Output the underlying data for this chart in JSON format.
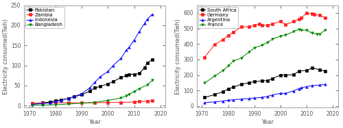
{
  "left": {
    "ylabel": "Electricity consumed(Twh)",
    "xlabel": "Year",
    "ylim": [
      -5,
      250
    ],
    "xlim": [
      1968,
      2022
    ],
    "yticks": [
      0,
      50,
      100,
      150,
      200,
      250
    ],
    "xticks": [
      1970,
      1980,
      1990,
      2000,
      2010,
      2020
    ],
    "series": {
      "Pakistan": {
        "color": "#000000",
        "marker": "s",
        "x": [
          1971,
          1975,
          1978,
          1980,
          1982,
          1985,
          1987,
          1990,
          1993,
          1995,
          1997,
          2000,
          2002,
          2005,
          2007,
          2008,
          2010,
          2012,
          2014,
          2015,
          2017
        ],
        "y": [
          5,
          7,
          9,
          12,
          14,
          18,
          22,
          27,
          36,
          44,
          48,
          54,
          60,
          70,
          75,
          78,
          78,
          80,
          95,
          106,
          115
        ]
      },
      "Zambia": {
        "color": "#ff2020",
        "marker": "s",
        "x": [
          1971,
          1975,
          1980,
          1985,
          1990,
          1995,
          2000,
          2005,
          2010,
          2012,
          2015,
          2017
        ],
        "y": [
          5,
          6,
          7,
          7,
          7,
          7,
          8,
          8,
          9,
          10,
          11,
          12
        ]
      },
      "Indonesia": {
        "color": "#1010ff",
        "marker": "^",
        "x": [
          1971,
          1975,
          1978,
          1980,
          1982,
          1985,
          1987,
          1990,
          1993,
          1995,
          1997,
          2000,
          2002,
          2005,
          2007,
          2008,
          2010,
          2012,
          2014,
          2015,
          2017
        ],
        "y": [
          3,
          5,
          7,
          10,
          13,
          18,
          22,
          30,
          44,
          58,
          72,
          85,
          100,
          118,
          138,
          145,
          163,
          185,
          205,
          215,
          228
        ]
      },
      "Bangladesh": {
        "color": "#008800",
        "marker": "v",
        "x": [
          1971,
          1975,
          1980,
          1985,
          1990,
          1995,
          2000,
          2005,
          2007,
          2008,
          2010,
          2012,
          2015,
          2017
        ],
        "y": [
          1,
          1,
          2,
          4,
          6,
          8,
          13,
          19,
          24,
          28,
          35,
          42,
          52,
          63
        ]
      }
    }
  },
  "right": {
    "ylabel": "Electricity consumed(Twh)",
    "xlabel": "Year",
    "ylim": [
      -10,
      650
    ],
    "xlim": [
      1968,
      2022
    ],
    "yticks": [
      0,
      100,
      200,
      300,
      400,
      500,
      600
    ],
    "xticks": [
      1970,
      1980,
      1990,
      2000,
      2010,
      2020
    ],
    "series": {
      "South Africa": {
        "color": "#000000",
        "marker": "s",
        "x": [
          1971,
          1975,
          1978,
          1980,
          1982,
          1985,
          1988,
          1990,
          1993,
          1995,
          1997,
          2000,
          2002,
          2005,
          2007,
          2010,
          2012,
          2015,
          2017
        ],
        "y": [
          55,
          75,
          92,
          110,
          122,
          140,
          150,
          158,
          162,
          165,
          177,
          200,
          200,
          202,
          225,
          230,
          245,
          235,
          225
        ]
      },
      "Germany": {
        "color": "#ff2020",
        "marker": "s",
        "x": [
          1971,
          1975,
          1978,
          1980,
          1982,
          1985,
          1988,
          1990,
          1992,
          1993,
          1995,
          1997,
          2000,
          2002,
          2005,
          2007,
          2008,
          2010,
          2012,
          2013,
          2015,
          2017
        ],
        "y": [
          315,
          398,
          428,
          455,
          475,
          510,
          512,
          520,
          530,
          522,
          520,
          530,
          545,
          525,
          545,
          560,
          570,
          598,
          595,
          590,
          585,
          570
        ]
      },
      "Argentina": {
        "color": "#1010ff",
        "marker": "^",
        "x": [
          1971,
          1975,
          1978,
          1980,
          1982,
          1985,
          1988,
          1990,
          1993,
          1995,
          1997,
          2000,
          2002,
          2005,
          2007,
          2008,
          2010,
          2012,
          2015,
          2017
        ],
        "y": [
          22,
          27,
          32,
          38,
          40,
          45,
          48,
          52,
          56,
          62,
          72,
          82,
          82,
          98,
          112,
          118,
          125,
          132,
          135,
          140
        ]
      },
      "France": {
        "color": "#008800",
        "marker": "v",
        "x": [
          1971,
          1975,
          1978,
          1980,
          1982,
          1985,
          1988,
          1990,
          1993,
          1995,
          1997,
          2000,
          2002,
          2005,
          2007,
          2008,
          2010,
          2012,
          2014,
          2015,
          2017
        ],
        "y": [
          148,
          195,
          228,
          258,
          290,
          310,
          348,
          375,
          393,
          410,
          432,
          450,
          458,
          480,
          495,
          488,
          490,
          470,
          465,
          462,
          490
        ]
      }
    }
  },
  "figsize": [
    5.0,
    1.87
  ],
  "dpi": 100,
  "spine_color": "#aaaaaa",
  "tick_label_size": 5.5,
  "axis_label_size": 6,
  "legend_fontsize": 5,
  "marker_size": 2.5,
  "linewidth": 0.75
}
